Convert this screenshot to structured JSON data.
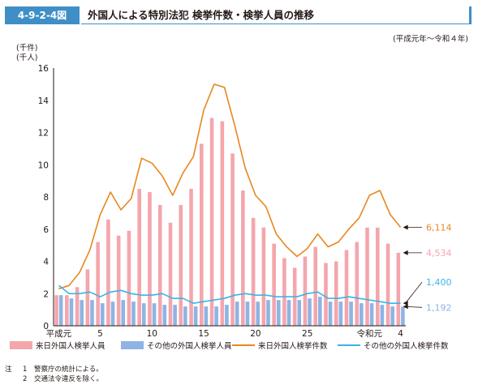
{
  "figure": {
    "number": "4-9-2-4図",
    "title": "外国人による特別法犯 検挙件数・検挙人員の推移",
    "period": "(平成元年〜令和４年)"
  },
  "notes": {
    "label": "注",
    "items": [
      {
        "num": "1",
        "text": "警察庁の統計による。"
      },
      {
        "num": "2",
        "text": "交通法令違反を除く。"
      }
    ]
  },
  "chart_data": {
    "type": "bar",
    "unit_label_1": "(千件)",
    "unit_label_2": "(千人)",
    "ylim": [
      0,
      16
    ],
    "yticks": [
      "0",
      "2",
      "4",
      "6",
      "8",
      "10",
      "12",
      "14",
      "16"
    ],
    "x": [
      "平成元",
      "2",
      "3",
      "4",
      "5",
      "6",
      "7",
      "8",
      "9",
      "10",
      "11",
      "12",
      "13",
      "14",
      "15",
      "16",
      "17",
      "18",
      "19",
      "20",
      "21",
      "22",
      "23",
      "24",
      "25",
      "26",
      "27",
      "28",
      "29",
      "30",
      "令和元",
      "2",
      "3",
      "4"
    ],
    "x_tick_labels": [
      {
        "index": 0,
        "label": "平成元"
      },
      {
        "index": 4,
        "label": "5"
      },
      {
        "index": 9,
        "label": "10"
      },
      {
        "index": 14,
        "label": "15"
      },
      {
        "index": 19,
        "label": "20"
      },
      {
        "index": 24,
        "label": "25"
      },
      {
        "index": 30,
        "label": "令和元"
      },
      {
        "index": 33,
        "label": "4"
      }
    ],
    "series": [
      {
        "name": "来日外国人検挙人員",
        "kind": "bar",
        "color": "#f4a6ad",
        "values": [
          1.9,
          1.9,
          2.4,
          3.5,
          5.2,
          6.6,
          5.6,
          5.9,
          8.5,
          8.3,
          7.5,
          6.4,
          7.5,
          8.5,
          11.3,
          12.9,
          12.7,
          10.7,
          8.4,
          6.7,
          6.1,
          5.1,
          4.2,
          3.6,
          4.3,
          4.9,
          3.9,
          4.0,
          4.7,
          5.2,
          6.1,
          6.1,
          5.1,
          4.534
        ]
      },
      {
        "name": "その他の外国人検挙人員",
        "kind": "bar",
        "color": "#8fb3e4",
        "values": [
          1.9,
          1.7,
          1.6,
          1.6,
          1.4,
          1.5,
          1.6,
          1.5,
          1.4,
          1.4,
          1.3,
          1.3,
          1.2,
          1.2,
          1.2,
          1.2,
          1.3,
          1.5,
          1.5,
          1.5,
          1.6,
          1.6,
          1.6,
          1.6,
          1.7,
          1.8,
          1.5,
          1.5,
          1.5,
          1.4,
          1.4,
          1.3,
          1.2,
          1.192
        ]
      },
      {
        "name": "来日外国人検挙件数",
        "kind": "line",
        "color": "#e8871e",
        "values": [
          2.3,
          2.5,
          3.3,
          4.7,
          6.9,
          8.3,
          7.2,
          7.9,
          10.4,
          10.1,
          9.3,
          8.1,
          9.5,
          10.5,
          13.4,
          15.0,
          14.8,
          12.4,
          9.8,
          8.1,
          7.4,
          5.7,
          4.9,
          4.3,
          4.8,
          5.7,
          4.9,
          5.2,
          6.0,
          6.7,
          8.1,
          8.4,
          6.9,
          6.114
        ]
      },
      {
        "name": "その他の外国人検挙件数",
        "kind": "line",
        "color": "#3cb4e6",
        "values": [
          2.5,
          2.0,
          2.0,
          2.1,
          1.8,
          2.1,
          2.2,
          2.0,
          1.9,
          1.9,
          2.0,
          1.7,
          1.7,
          1.4,
          1.5,
          1.6,
          1.7,
          1.9,
          2.0,
          1.9,
          1.9,
          1.8,
          1.8,
          1.8,
          2.0,
          2.1,
          1.7,
          1.7,
          1.8,
          1.7,
          1.6,
          1.5,
          1.4,
          1.4
        ]
      }
    ],
    "end_labels": [
      {
        "series": 2,
        "text": "6,114"
      },
      {
        "series": 0,
        "text": "4,534"
      },
      {
        "series": 3,
        "text": "1,400"
      },
      {
        "series": 1,
        "text": "1,192"
      }
    ],
    "grid": false,
    "legend_position": "bottom"
  }
}
